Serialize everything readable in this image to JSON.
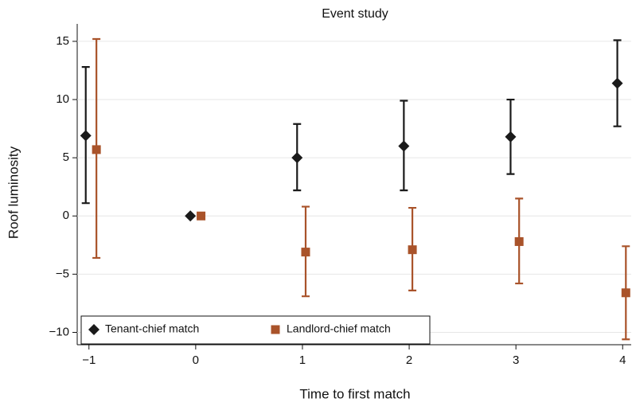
{
  "chart_data": {
    "type": "errorbar",
    "title": "Event study",
    "x_label": "Time to first match",
    "y_label": "Roof luminosity",
    "xlim": [
      -1.11,
      4.08
    ],
    "ylim": [
      -11.06,
      16.5
    ],
    "xticks": [
      {
        "value": -1,
        "label": "−1"
      },
      0,
      1,
      2,
      3,
      4
    ],
    "yticks": [
      {
        "value": -10,
        "label": "−10"
      },
      {
        "value": -5,
        "label": "−5"
      },
      0,
      5,
      10,
      15
    ],
    "legend": "bottom-left",
    "series": [
      {
        "name": "Tenant-chief match",
        "color": "#1a1a1a",
        "marker": "diamond",
        "x": [
          -1.03,
          -0.05,
          0.95,
          1.95,
          2.95,
          3.95
        ],
        "values": [
          6.9,
          0,
          5.0,
          6.0,
          6.8,
          11.4
        ],
        "lower": [
          1.1,
          0,
          2.2,
          2.2,
          3.6,
          7.7
        ],
        "upper": [
          12.8,
          0,
          7.9,
          9.9,
          10.0,
          15.1
        ]
      },
      {
        "name": "Landlord-chief match",
        "color": "#a9532a",
        "marker": "square",
        "x": [
          -0.93,
          0.05,
          1.03,
          2.03,
          3.03,
          4.03
        ],
        "values": [
          5.7,
          0,
          -3.1,
          -2.9,
          -2.2,
          -6.6
        ],
        "lower": [
          -3.6,
          0,
          -6.9,
          -6.4,
          -5.8,
          -10.6
        ],
        "upper": [
          15.2,
          0,
          0.8,
          0.7,
          1.5,
          -2.6
        ]
      }
    ]
  }
}
